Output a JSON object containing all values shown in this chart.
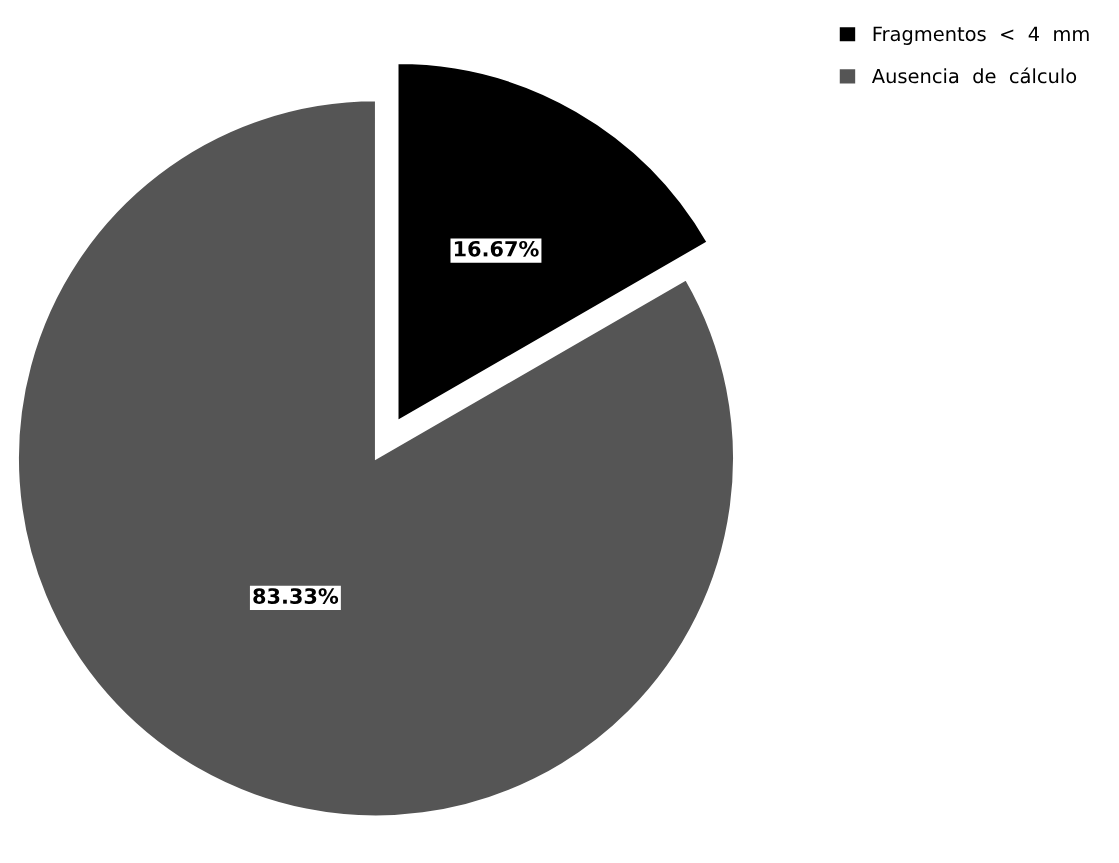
{
  "chart_data": {
    "type": "pie",
    "categories": [
      "Fragmentos  <  4  mm",
      "Ausencia  de  cálculo"
    ],
    "values": [
      16.67,
      83.33
    ],
    "colors": [
      "#000000",
      "#555555"
    ],
    "value_labels": [
      "16.67%",
      "83.33%"
    ],
    "legend": "top right"
  }
}
